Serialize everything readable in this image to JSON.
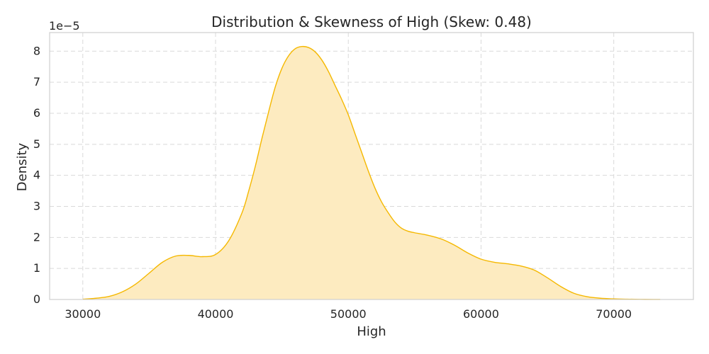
{
  "chart_data": {
    "type": "area",
    "title": "Distribution & Skewness of High (Skew: 0.48)",
    "xlabel": "High",
    "ylabel": "Density",
    "y_offset_label": "1e−5",
    "xlim": [
      27500,
      76000
    ],
    "ylim": [
      0,
      8.6
    ],
    "xticks": [
      30000,
      40000,
      50000,
      60000,
      70000
    ],
    "yticks": [
      0,
      1,
      2,
      3,
      4,
      5,
      6,
      7,
      8
    ],
    "grid": true,
    "colors": {
      "fill": "#FDEBC0",
      "line": "#F5B800",
      "grid": "#d9d9d9",
      "frame": "#cfcfcf"
    },
    "series": [
      {
        "x": [
          30000,
          31000,
          32000,
          33000,
          34000,
          35000,
          36000,
          37000,
          38000,
          39000,
          40000,
          41000,
          42000,
          42500,
          43000,
          43500,
          44000,
          44500,
          45000,
          45500,
          46000,
          46500,
          47000,
          47500,
          48000,
          48500,
          49000,
          49500,
          50000,
          50500,
          51000,
          51500,
          52000,
          52500,
          53000,
          53500,
          54000,
          54500,
          55000,
          56000,
          57000,
          58000,
          59000,
          60000,
          61000,
          62000,
          63000,
          64000,
          65000,
          66000,
          67000,
          68000,
          69000,
          70000,
          71000,
          72000,
          73000,
          73500
        ],
        "y": [
          0.01,
          0.04,
          0.1,
          0.25,
          0.5,
          0.85,
          1.2,
          1.4,
          1.42,
          1.38,
          1.45,
          1.9,
          2.8,
          3.5,
          4.3,
          5.2,
          6.05,
          6.85,
          7.45,
          7.85,
          8.08,
          8.15,
          8.12,
          7.98,
          7.72,
          7.35,
          6.9,
          6.45,
          5.95,
          5.35,
          4.75,
          4.15,
          3.6,
          3.15,
          2.8,
          2.5,
          2.3,
          2.2,
          2.15,
          2.07,
          1.95,
          1.75,
          1.5,
          1.3,
          1.2,
          1.15,
          1.08,
          0.95,
          0.7,
          0.42,
          0.2,
          0.09,
          0.04,
          0.02,
          0.01,
          0.004,
          0.001,
          0.0005
        ]
      }
    ]
  }
}
